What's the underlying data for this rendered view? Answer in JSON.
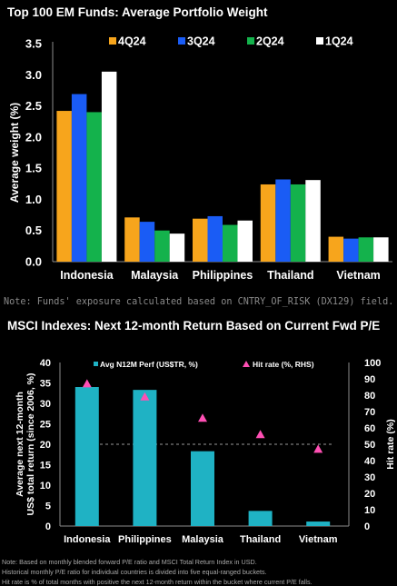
{
  "chart_data": [
    {
      "type": "bar",
      "title": "Top 100 EM Funds: Average Portfolio Weight",
      "xlabel": "",
      "ylabel": "Average weight (%)",
      "ylim": [
        0,
        3.5
      ],
      "yticks": [
        "0.0",
        "0.5",
        "1.0",
        "1.5",
        "2.0",
        "2.5",
        "3.0",
        "3.5"
      ],
      "categories": [
        "Indonesia",
        "Malaysia",
        "Philippines",
        "Thailand",
        "Vietnam"
      ],
      "series": [
        {
          "name": "4Q24",
          "color": "#f7a51c",
          "values": [
            2.42,
            0.71,
            0.69,
            1.24,
            0.4
          ]
        },
        {
          "name": "3Q24",
          "color": "#1a5cf5",
          "values": [
            2.69,
            0.64,
            0.73,
            1.32,
            0.37
          ]
        },
        {
          "name": "2Q24",
          "color": "#14b24c",
          "values": [
            2.4,
            0.5,
            0.59,
            1.24,
            0.39
          ]
        },
        {
          "name": "1Q24",
          "color": "#ffffff",
          "values": [
            3.05,
            0.45,
            0.66,
            1.31,
            0.39
          ]
        }
      ],
      "legend_position": "top",
      "grid": false,
      "note": "Note: Funds' exposure calculated based on CNTRY_OF_RISK (DX129) field."
    },
    {
      "type": "bar",
      "title": "MSCI Indexes: Next 12-month Return Based on Current Fwd P/E",
      "xlabel": "",
      "ylabel": "Average next 12-month US$ total return (since 2006, %)",
      "y2label": "Hit rate (%)",
      "ylim": [
        0,
        40
      ],
      "y2lim": [
        0,
        100
      ],
      "yticks": [
        "0",
        "5",
        "10",
        "15",
        "20",
        "25",
        "30",
        "35",
        "40"
      ],
      "y2ticks": [
        "0",
        "10",
        "20",
        "30",
        "40",
        "50",
        "60",
        "70",
        "80",
        "90",
        "100"
      ],
      "categories": [
        "Indonesia",
        "Philippines",
        "Malaysia",
        "Thailand",
        "Vietnam"
      ],
      "series": [
        {
          "name": "Avg N12M Perf (US$TR, %)",
          "color": "#1fb2c4",
          "kind": "bar",
          "axis": "left",
          "values": [
            34.0,
            33.3,
            18.3,
            3.7,
            1.1
          ]
        },
        {
          "name": "Hit rate (%, RHS)",
          "color": "#ff4fb4",
          "kind": "marker",
          "axis": "right",
          "values": [
            87,
            79,
            66,
            56,
            47
          ]
        }
      ],
      "reference_line": {
        "axis": "right",
        "value": 50,
        "style": "dashed"
      },
      "legend_position": "top",
      "grid": false,
      "footnotes": [
        "Note: Based on monthly blended forward P/E ratio and MSCI Total Return Index in USD.",
        "Historical monthly P/E ratio for individual countries is divided into five equal-ranged buckets.",
        "Hit rate is % of total months with positive the next 12-month return within the bucket where current P/E falls."
      ]
    }
  ]
}
